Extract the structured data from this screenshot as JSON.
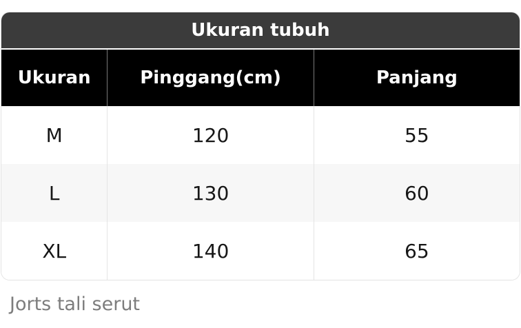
{
  "chart_data": {
    "type": "table",
    "title": "Ukuran tubuh",
    "columns": [
      "Ukuran",
      "Pinggang(cm)",
      "Panjang"
    ],
    "rows": [
      [
        "M",
        "120",
        "55"
      ],
      [
        "L",
        "130",
        "60"
      ],
      [
        "XL",
        "140",
        "65"
      ]
    ],
    "caption": "Jorts tali serut"
  },
  "colors": {
    "title_bar_bg": "#3b3b3b",
    "title_text": "#ffffff",
    "header_bg": "#000000",
    "header_text": "#ffffff",
    "alt_row_bg": "#f7f7f7",
    "body_text": "#161616",
    "caption_text": "#7d7d7d",
    "divider_body": "#e4e4e4",
    "divider_header": "#7a7a7a"
  }
}
